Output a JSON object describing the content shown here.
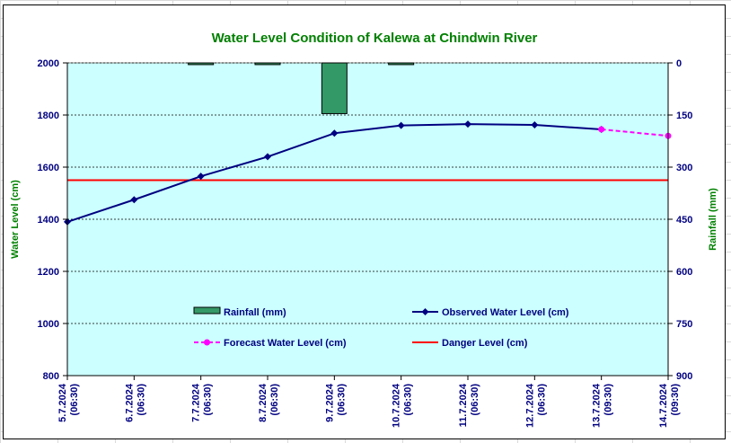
{
  "chart_data": {
    "type": "line",
    "title": "Water Level Condition of Kalewa at Chindwin River",
    "categories": [
      "5.7.2024\n(06:30)",
      "6.7.2024\n(06:30)",
      "7.7.2024\n(06:30)",
      "8.7.2024\n(06:30)",
      "9.7.2024\n(06:30)",
      "10.7.2024\n(06:30)",
      "11.7.2024\n(06:30)",
      "12.7.2024\n(06:30)",
      "13.7.2024\n(09:30)",
      "14.7.2024\n(09:30)"
    ],
    "ylabel": "Water Level (cm)",
    "y2label": "Rainfall (mm)",
    "ylim": [
      800,
      2000
    ],
    "yticks": [
      "800",
      "1000",
      "1200",
      "1400",
      "1600",
      "1800",
      "2000"
    ],
    "y2lim": [
      0,
      900
    ],
    "y2ticks": [
      "0",
      "150",
      "300",
      "450",
      "600",
      "750",
      "900"
    ],
    "y2_inverted": true,
    "grid": "horizontal dashed",
    "series": [
      {
        "name": "Rainfall (mm)",
        "kind": "bar",
        "axis": "right",
        "color": "#339966",
        "values": [
          null,
          null,
          5,
          5,
          146,
          5,
          null,
          null,
          null,
          null
        ]
      },
      {
        "name": "Observed Water Level (cm)",
        "kind": "line",
        "axis": "left",
        "color": "#000080",
        "marker": "diamond",
        "values": [
          1390,
          1475,
          1565,
          1640,
          1730,
          1760,
          1765,
          1762,
          1745,
          null
        ]
      },
      {
        "name": "Forecast Water Level (cm)",
        "kind": "line",
        "axis": "left",
        "color": "#ff00ff",
        "dashed": true,
        "marker": "circle",
        "values": [
          null,
          null,
          null,
          null,
          null,
          null,
          null,
          null,
          1745,
          1720
        ]
      },
      {
        "name": "Danger Level (cm)",
        "kind": "hline",
        "axis": "left",
        "color": "#ff0000",
        "value": 1550
      }
    ],
    "legend": {
      "placement": "inside-bottom",
      "entries": [
        "Rainfall (mm)",
        "Observed Water Level (cm)",
        "Forecast Water Level (cm)",
        "Danger Level (cm)"
      ]
    },
    "colors": {
      "plot_background": "#ccffff",
      "title": "#008000",
      "axis_text": "#000080"
    }
  }
}
